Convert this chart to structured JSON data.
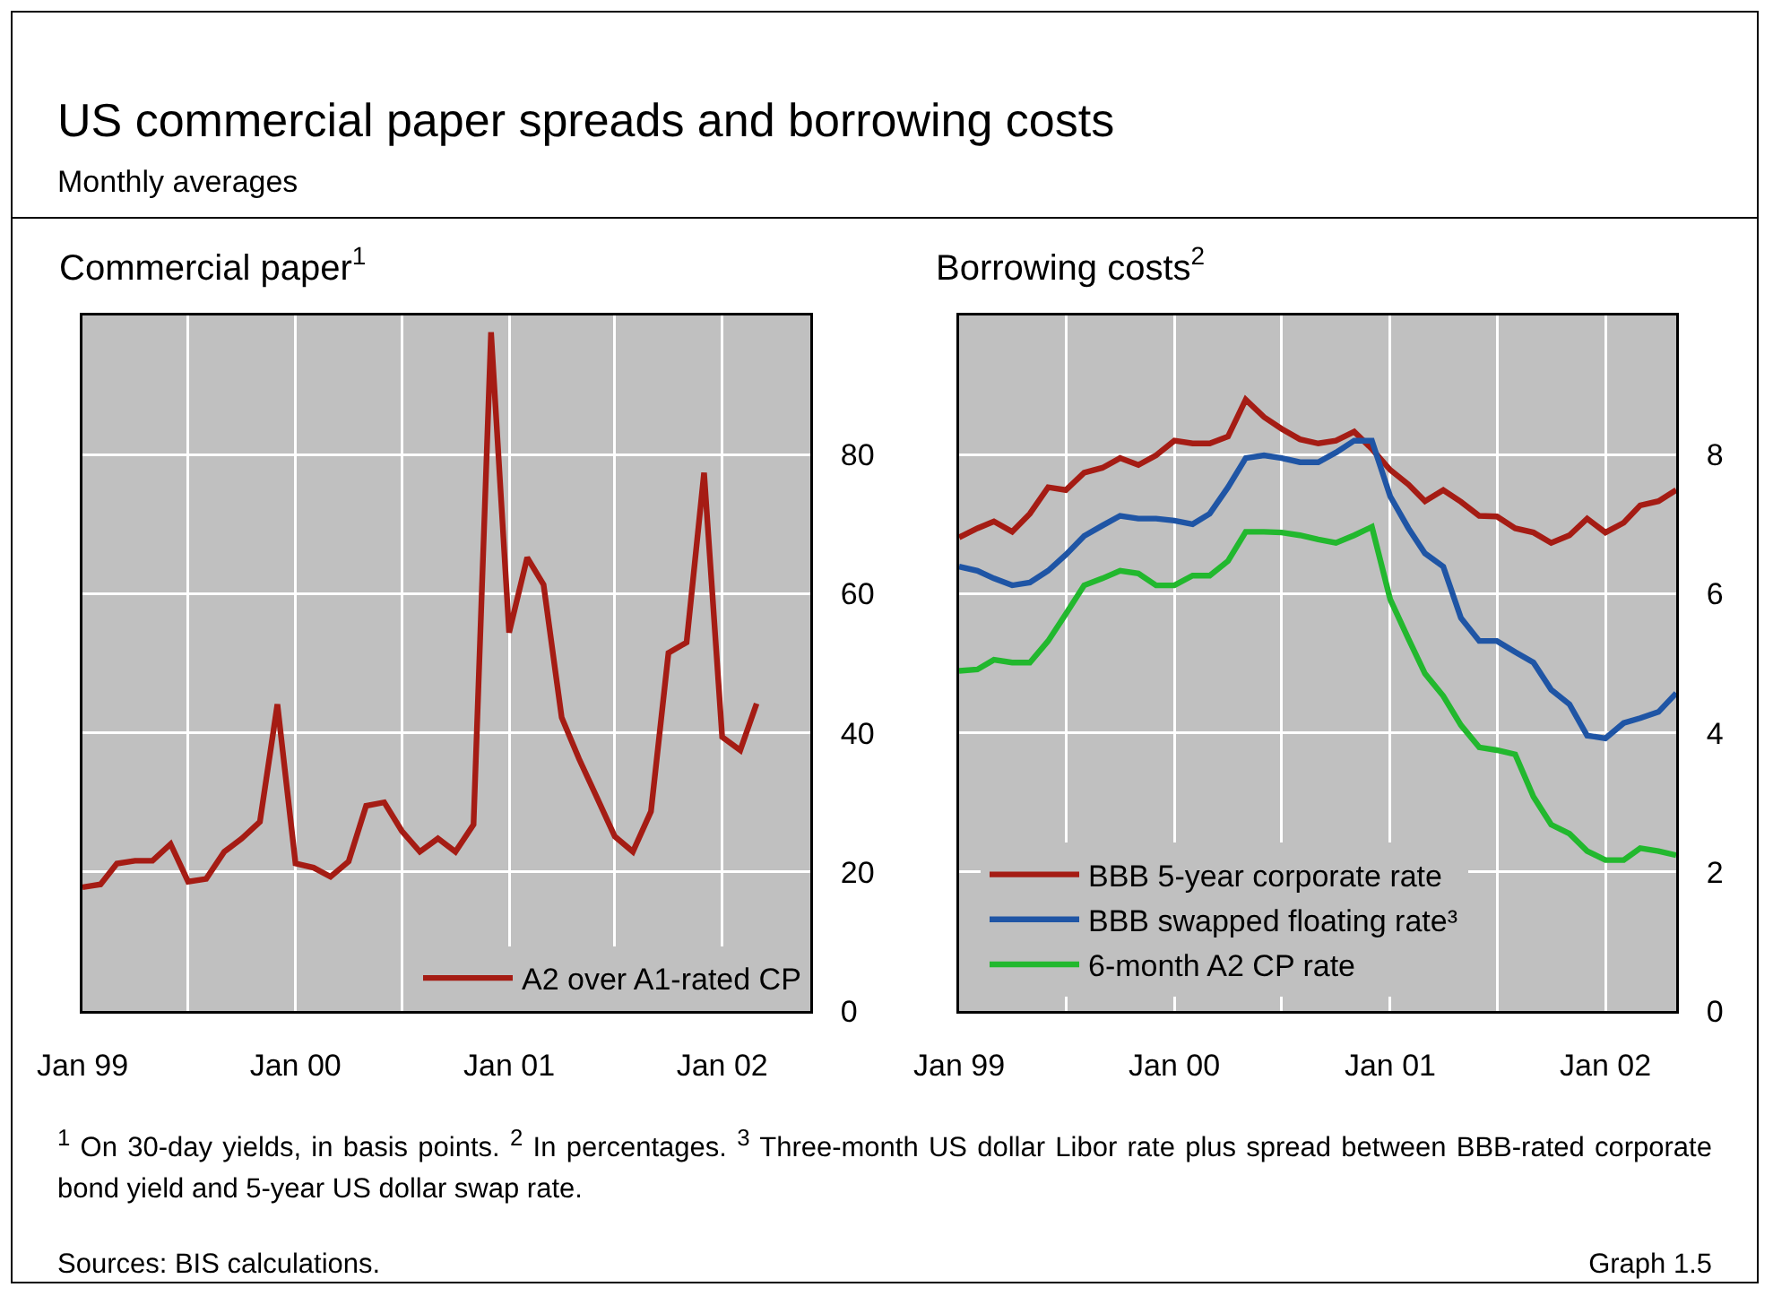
{
  "chart_data": [
    {
      "type": "other",
      "title": "US commercial paper spreads and borrowing costs",
      "subtitle": "Monthly averages"
    },
    {
      "type": "line",
      "title": "Commercial paper$^{1}$",
      "x": [
        "1999-01",
        "1999-02",
        "1999-03",
        "1999-04",
        "1999-05",
        "1999-06",
        "1999-07",
        "1999-08",
        "1999-09",
        "1999-10",
        "1999-11",
        "1999-12",
        "2000-01",
        "2000-02",
        "2000-03",
        "2000-04",
        "2000-05",
        "2000-06",
        "2000-07",
        "2000-08",
        "2000-09",
        "2000-10",
        "2000-11",
        "2000-12",
        "2001-01",
        "2001-02",
        "2001-03",
        "2001-04",
        "2001-05",
        "2001-06",
        "2001-07",
        "2001-08",
        "2001-09",
        "2001-10",
        "2001-11",
        "2001-12",
        "2002-01",
        "2002-02",
        "2002-03"
      ],
      "series": [
        {
          "name": "A2 over A1-rated CP",
          "color": "#a51c14",
          "values": [
            17.8,
            18.2,
            21.2,
            21.6,
            21.6,
            24,
            18.6,
            19,
            22.9,
            24.8,
            27.2,
            44.1,
            21.2,
            20.6,
            19.3,
            21.5,
            29.5,
            30,
            25.9,
            22.9,
            24.8,
            22.9,
            26.8,
            97.6,
            54.4,
            65.2,
            61.3,
            42.2,
            36.2,
            30.6,
            25.1,
            22.9,
            28.7,
            51.5,
            53,
            77.4,
            39.4,
            37.5,
            44.2
          ]
        }
      ],
      "xlim": [
        "1999-01",
        "2002-06"
      ],
      "xticks": [
        {
          "value": "1999-01",
          "label": "Jan 99"
        },
        {
          "value": "1999-07",
          "label": null
        },
        {
          "value": "2000-01",
          "label": "Jan 00"
        },
        {
          "value": "2000-07",
          "label": null
        },
        {
          "value": "2001-01",
          "label": "Jan 01"
        },
        {
          "value": "2001-07",
          "label": null
        },
        {
          "value": "2002-01",
          "label": "Jan 02"
        }
      ],
      "ylim": [
        0,
        100
      ],
      "yticks": [
        0,
        20,
        40,
        60,
        80
      ],
      "grid": true,
      "legend": "bottom right",
      "marker": "none",
      "line_style": "solid"
    },
    {
      "type": "line",
      "title": "Borrowing costs$^{2}$",
      "x": [
        "1999-01",
        "1999-02",
        "1999-03",
        "1999-04",
        "1999-05",
        "1999-06",
        "1999-07",
        "1999-08",
        "1999-09",
        "1999-10",
        "1999-11",
        "1999-12",
        "2000-01",
        "2000-02",
        "2000-03",
        "2000-04",
        "2000-05",
        "2000-06",
        "2000-07",
        "2000-08",
        "2000-09",
        "2000-10",
        "2000-11",
        "2000-12",
        "2001-01",
        "2001-02",
        "2001-03",
        "2001-04",
        "2001-05",
        "2001-06",
        "2001-07",
        "2001-08",
        "2001-09",
        "2001-10",
        "2001-11",
        "2001-12",
        "2002-01",
        "2002-02",
        "2002-03",
        "2002-04",
        "2002-05"
      ],
      "series": [
        {
          "name": "BBB 5-year corporate rate",
          "color": "#a51c14",
          "values": [
            6.81,
            6.94,
            7.04,
            6.89,
            7.15,
            7.53,
            7.49,
            7.74,
            7.81,
            7.95,
            7.85,
            7.99,
            8.2,
            8.16,
            8.16,
            8.26,
            8.79,
            8.54,
            8.37,
            8.22,
            8.16,
            8.2,
            8.33,
            8.08,
            7.78,
            7.57,
            7.33,
            7.49,
            7.32,
            7.12,
            7.11,
            6.94,
            6.88,
            6.73,
            6.84,
            7.08,
            6.88,
            7.02,
            7.27,
            7.33,
            7.49
          ]
        },
        {
          "name": "BBB swapped floating rate³",
          "color": "#1f55a5",
          "values": [
            6.39,
            6.33,
            6.22,
            6.12,
            6.16,
            6.33,
            6.56,
            6.83,
            6.98,
            7.12,
            7.08,
            7.08,
            7.05,
            7.0,
            7.15,
            7.53,
            7.95,
            7.99,
            7.95,
            7.89,
            7.89,
            8.03,
            8.2,
            8.2,
            7.4,
            6.94,
            6.58,
            6.39,
            5.65,
            5.32,
            5.32,
            5.16,
            5.01,
            4.62,
            4.41,
            3.96,
            3.92,
            4.14,
            4.21,
            4.3,
            4.57
          ]
        },
        {
          "name": "6-month A2 CP rate",
          "color": "#22b82e",
          "values": [
            4.89,
            4.91,
            5.05,
            5.01,
            5.01,
            5.32,
            5.71,
            6.12,
            6.22,
            6.33,
            6.29,
            6.12,
            6.12,
            6.26,
            6.26,
            6.47,
            6.89,
            6.89,
            6.88,
            6.84,
            6.78,
            6.73,
            6.84,
            6.96,
            5.92,
            5.35,
            4.85,
            4.53,
            4.11,
            3.79,
            3.75,
            3.69,
            3.08,
            2.68,
            2.55,
            2.3,
            2.17,
            2.17,
            2.34,
            2.3,
            2.24
          ]
        }
      ],
      "xlim": [
        "1999-01",
        "2002-05"
      ],
      "xticks": [
        {
          "value": "1999-01",
          "label": "Jan 99"
        },
        {
          "value": "1999-07",
          "label": null
        },
        {
          "value": "2000-01",
          "label": "Jan 00"
        },
        {
          "value": "2000-07",
          "label": null
        },
        {
          "value": "2001-01",
          "label": "Jan 01"
        },
        {
          "value": "2001-07",
          "label": null
        },
        {
          "value": "2002-01",
          "label": "Jan 02"
        }
      ],
      "ylim": [
        0,
        10
      ],
      "yticks": [
        0,
        2,
        4,
        6,
        8
      ],
      "grid": true,
      "legend": "bottom left",
      "marker": "none",
      "line_style": "solid"
    },
    {
      "type": "other",
      "annotations": [
        "$^{1}$ On 30-day yields, in basis points.  $^{2}$ In percentages.  $^{3}$ Three-month US dollar Libor rate plus spread between BBB-rated corporate bond yield and 5-year US dollar swap rate.",
        "Sources: BIS calculations.",
        "Graph 1.5"
      ]
    }
  ]
}
